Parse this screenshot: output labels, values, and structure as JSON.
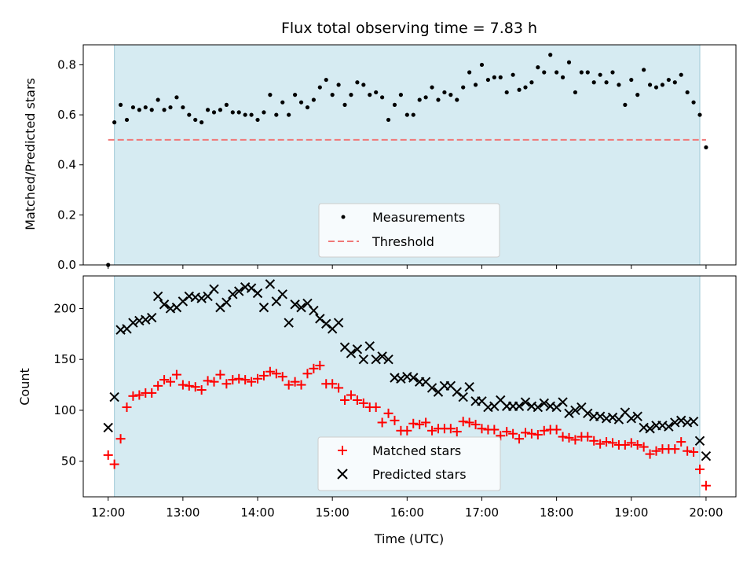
{
  "chart_data": [
    {
      "type": "scatter",
      "title": "Flux total observing time = 7.83 h",
      "ylabel": "Matched/Predicted stars",
      "xlim": [
        "11:40",
        "20:24"
      ],
      "ylim": [
        0,
        0.88
      ],
      "yticks": [
        "0.0",
        "0.2",
        "0.4",
        "0.6",
        "0.8"
      ],
      "shaded_span": [
        "12:05",
        "19:55"
      ],
      "shaded_color": "#add8e6",
      "legend_position": "bottom-center",
      "series": [
        {
          "name": "Measurements",
          "marker": "dot",
          "color": "#000000",
          "x": [
            "12:00",
            "12:05",
            "12:10",
            "12:15",
            "12:20",
            "12:25",
            "12:30",
            "12:35",
            "12:40",
            "12:45",
            "12:50",
            "12:55",
            "13:00",
            "13:05",
            "13:10",
            "13:15",
            "13:20",
            "13:25",
            "13:30",
            "13:35",
            "13:40",
            "13:45",
            "13:50",
            "13:55",
            "14:00",
            "14:05",
            "14:10",
            "14:15",
            "14:20",
            "14:25",
            "14:30",
            "14:35",
            "14:40",
            "14:45",
            "14:50",
            "14:55",
            "15:00",
            "15:05",
            "15:10",
            "15:15",
            "15:20",
            "15:25",
            "15:30",
            "15:35",
            "15:40",
            "15:45",
            "15:50",
            "15:55",
            "16:00",
            "16:05",
            "16:10",
            "16:15",
            "16:20",
            "16:25",
            "16:30",
            "16:35",
            "16:40",
            "16:45",
            "16:50",
            "16:55",
            "17:00",
            "17:05",
            "17:10",
            "17:15",
            "17:20",
            "17:25",
            "17:30",
            "17:35",
            "17:40",
            "17:45",
            "17:50",
            "17:55",
            "18:00",
            "18:05",
            "18:10",
            "18:15",
            "18:20",
            "18:25",
            "18:30",
            "18:35",
            "18:40",
            "18:45",
            "18:50",
            "18:55",
            "19:00",
            "19:05",
            "19:10",
            "19:15",
            "19:20",
            "19:25",
            "19:30",
            "19:35",
            "19:40",
            "19:45",
            "19:50",
            "19:55",
            "20:00"
          ],
          "y": [
            0.0,
            0.57,
            0.64,
            0.58,
            0.63,
            0.62,
            0.63,
            0.62,
            0.66,
            0.62,
            0.63,
            0.67,
            0.63,
            0.6,
            0.58,
            0.57,
            0.62,
            0.61,
            0.62,
            0.64,
            0.61,
            0.61,
            0.6,
            0.6,
            0.58,
            0.61,
            0.68,
            0.6,
            0.65,
            0.6,
            0.68,
            0.65,
            0.63,
            0.66,
            0.71,
            0.74,
            0.68,
            0.72,
            0.64,
            0.68,
            0.73,
            0.72,
            0.68,
            0.69,
            0.67,
            0.58,
            0.64,
            0.68,
            0.6,
            0.6,
            0.66,
            0.67,
            0.71,
            0.66,
            0.69,
            0.68,
            0.66,
            0.71,
            0.77,
            0.72,
            0.8,
            0.74,
            0.75,
            0.75,
            0.69,
            0.76,
            0.7,
            0.71,
            0.73,
            0.79,
            0.77,
            0.84,
            0.77,
            0.75,
            0.81,
            0.69,
            0.77,
            0.77,
            0.73,
            0.76,
            0.73,
            0.77,
            0.72,
            0.64,
            0.74,
            0.68,
            0.78,
            0.72,
            0.71,
            0.72,
            0.74,
            0.73,
            0.76,
            0.69,
            0.65,
            0.6,
            0.47
          ]
        },
        {
          "name": "Threshold",
          "marker": "dashed-line",
          "color": "#f07878",
          "x": [
            "12:00",
            "20:00"
          ],
          "y": [
            0.5,
            0.5
          ]
        }
      ]
    },
    {
      "type": "scatter",
      "ylabel": "Count",
      "xlabel": "Time (UTC)",
      "xlim": [
        "11:40",
        "20:24"
      ],
      "ylim": [
        15,
        232
      ],
      "yticks": [
        "50",
        "100",
        "150",
        "200"
      ],
      "xticks": [
        "12:00",
        "13:00",
        "14:00",
        "15:00",
        "16:00",
        "17:00",
        "18:00",
        "19:00",
        "20:00"
      ],
      "shaded_span": [
        "12:05",
        "19:55"
      ],
      "shaded_color": "#add8e6",
      "legend_position": "bottom-center",
      "series": [
        {
          "name": "Matched stars",
          "marker": "plus",
          "color": "#ff0000",
          "x": [
            "12:00",
            "12:05",
            "12:10",
            "12:15",
            "12:20",
            "12:25",
            "12:30",
            "12:35",
            "12:40",
            "12:45",
            "12:50",
            "12:55",
            "13:00",
            "13:05",
            "13:10",
            "13:15",
            "13:20",
            "13:25",
            "13:30",
            "13:35",
            "13:40",
            "13:45",
            "13:50",
            "13:55",
            "14:00",
            "14:05",
            "14:10",
            "14:15",
            "14:20",
            "14:25",
            "14:30",
            "14:35",
            "14:40",
            "14:45",
            "14:50",
            "14:55",
            "15:00",
            "15:05",
            "15:10",
            "15:15",
            "15:20",
            "15:25",
            "15:30",
            "15:35",
            "15:40",
            "15:45",
            "15:50",
            "15:55",
            "16:00",
            "16:05",
            "16:10",
            "16:15",
            "16:20",
            "16:25",
            "16:30",
            "16:35",
            "16:40",
            "16:45",
            "16:50",
            "16:55",
            "17:00",
            "17:05",
            "17:10",
            "17:15",
            "17:20",
            "17:25",
            "17:30",
            "17:35",
            "17:40",
            "17:45",
            "17:50",
            "17:55",
            "18:00",
            "18:05",
            "18:10",
            "18:15",
            "18:20",
            "18:25",
            "18:30",
            "18:35",
            "18:40",
            "18:45",
            "18:50",
            "18:55",
            "19:00",
            "19:05",
            "19:10",
            "19:15",
            "19:20",
            "19:25",
            "19:30",
            "19:35",
            "19:40",
            "19:45",
            "19:50",
            "19:55",
            "20:00"
          ],
          "y": [
            56,
            47,
            72,
            103,
            114,
            115,
            117,
            117,
            124,
            130,
            128,
            135,
            125,
            124,
            123,
            120,
            129,
            128,
            135,
            126,
            130,
            131,
            130,
            128,
            131,
            134,
            138,
            136,
            133,
            125,
            128,
            125,
            136,
            141,
            144,
            126,
            126,
            122,
            110,
            115,
            110,
            107,
            103,
            103,
            88,
            97,
            90,
            80,
            80,
            87,
            86,
            88,
            80,
            82,
            82,
            82,
            79,
            89,
            88,
            86,
            82,
            81,
            81,
            75,
            79,
            77,
            72,
            78,
            77,
            76,
            80,
            81,
            81,
            74,
            73,
            71,
            74,
            74,
            70,
            67,
            69,
            68,
            66,
            66,
            68,
            66,
            64,
            57,
            60,
            62,
            62,
            62,
            69,
            60,
            59,
            42,
            26
          ]
        },
        {
          "name": "Predicted stars",
          "marker": "x",
          "color": "#000000",
          "x": [
            "12:00",
            "12:05",
            "12:10",
            "12:15",
            "12:20",
            "12:25",
            "12:30",
            "12:35",
            "12:40",
            "12:45",
            "12:50",
            "12:55",
            "13:00",
            "13:05",
            "13:10",
            "13:15",
            "13:20",
            "13:25",
            "13:30",
            "13:35",
            "13:40",
            "13:45",
            "13:50",
            "13:55",
            "14:00",
            "14:05",
            "14:10",
            "14:15",
            "14:20",
            "14:25",
            "14:30",
            "14:35",
            "14:40",
            "14:45",
            "14:50",
            "14:55",
            "15:00",
            "15:05",
            "15:10",
            "15:15",
            "15:20",
            "15:25",
            "15:30",
            "15:35",
            "15:40",
            "15:45",
            "15:50",
            "15:55",
            "16:00",
            "16:05",
            "16:10",
            "16:15",
            "16:20",
            "16:25",
            "16:30",
            "16:35",
            "16:40",
            "16:45",
            "16:50",
            "16:55",
            "17:00",
            "17:05",
            "17:10",
            "17:15",
            "17:20",
            "17:25",
            "17:30",
            "17:35",
            "17:40",
            "17:45",
            "17:50",
            "17:55",
            "18:00",
            "18:05",
            "18:10",
            "18:15",
            "18:20",
            "18:25",
            "18:30",
            "18:35",
            "18:40",
            "18:45",
            "18:50",
            "18:55",
            "19:00",
            "19:05",
            "19:10",
            "19:15",
            "19:20",
            "19:25",
            "19:30",
            "19:35",
            "19:40",
            "19:45",
            "19:50",
            "19:55",
            "20:00"
          ],
          "y": [
            83,
            113,
            179,
            180,
            186,
            188,
            189,
            191,
            212,
            204,
            200,
            201,
            207,
            212,
            211,
            210,
            212,
            219,
            201,
            206,
            214,
            217,
            221,
            220,
            215,
            201,
            224,
            207,
            214,
            186,
            204,
            201,
            205,
            198,
            190,
            185,
            180,
            186,
            162,
            156,
            160,
            150,
            163,
            150,
            153,
            150,
            132,
            131,
            133,
            132,
            128,
            128,
            122,
            118,
            124,
            124,
            118,
            113,
            123,
            109,
            109,
            103,
            104,
            110,
            104,
            104,
            104,
            108,
            104,
            103,
            107,
            104,
            103,
            108,
            97,
            100,
            103,
            97,
            94,
            94,
            92,
            93,
            91,
            98,
            92,
            94,
            83,
            82,
            85,
            85,
            84,
            88,
            90,
            88,
            89,
            70,
            55
          ]
        }
      ]
    }
  ]
}
